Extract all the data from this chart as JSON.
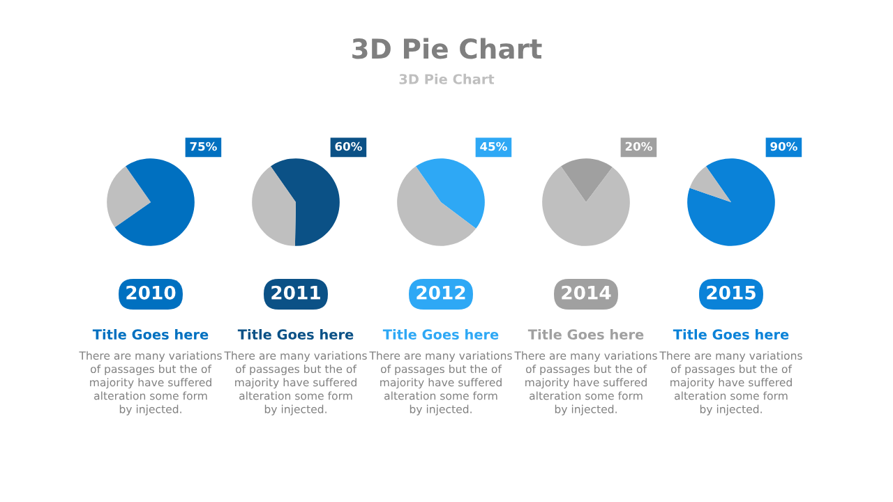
{
  "chart_data": [
    {
      "type": "other",
      "title": "3D Pie Chart",
      "subtitle": "3D Pie Chart"
    },
    {
      "type": "pie",
      "categories": [
        null,
        null
      ],
      "values": [
        75,
        25
      ],
      "colors": [
        "#0070c0",
        "#bfbfbf"
      ],
      "value_labels": [
        "75%",
        null
      ],
      "xlabel": "2010",
      "annotations": [
        "Title Goes here",
        "There are many variations\nof passages but the of\nmajority have suffered\nalteration some form\nby injected."
      ]
    },
    {
      "type": "pie",
      "categories": [
        null,
        null
      ],
      "values": [
        60,
        40
      ],
      "colors": [
        "#0b5186",
        "#bfbfbf"
      ],
      "value_labels": [
        "60%",
        null
      ],
      "xlabel": "2011",
      "annotations": [
        "Title Goes here",
        "There are many variations\nof passages but the of\nmajority have suffered\nalteration some form\nby injected."
      ]
    },
    {
      "type": "pie",
      "categories": [
        null,
        null
      ],
      "values": [
        45,
        55
      ],
      "colors": [
        "#2ea8f5",
        "#bfbfbf"
      ],
      "value_labels": [
        "45%",
        null
      ],
      "xlabel": "2012",
      "annotations": [
        "Title Goes here",
        "There are many variations\nof passages but the of\nmajority have suffered\nalteration some form\nby injected."
      ]
    },
    {
      "type": "pie",
      "categories": [
        null,
        null
      ],
      "values": [
        20,
        80
      ],
      "colors": [
        "#a0a0a0",
        "#bfbfbf"
      ],
      "value_labels": [
        "20%",
        null
      ],
      "xlabel": "2014",
      "annotations": [
        "Title Goes here",
        "There are many variations\nof passages but the of\nmajority have suffered\nalteration some form\nby injected."
      ]
    },
    {
      "type": "pie",
      "categories": [
        null,
        null
      ],
      "values": [
        90,
        10
      ],
      "colors": [
        "#0a82d8",
        "#bfbfbf"
      ],
      "value_labels": [
        "90%",
        null
      ],
      "xlabel": "2015",
      "annotations": [
        "Title Goes here",
        "There are many variations\nof passages but the of\nmajority have suffered\nalteration some form\nby injected."
      ]
    }
  ]
}
